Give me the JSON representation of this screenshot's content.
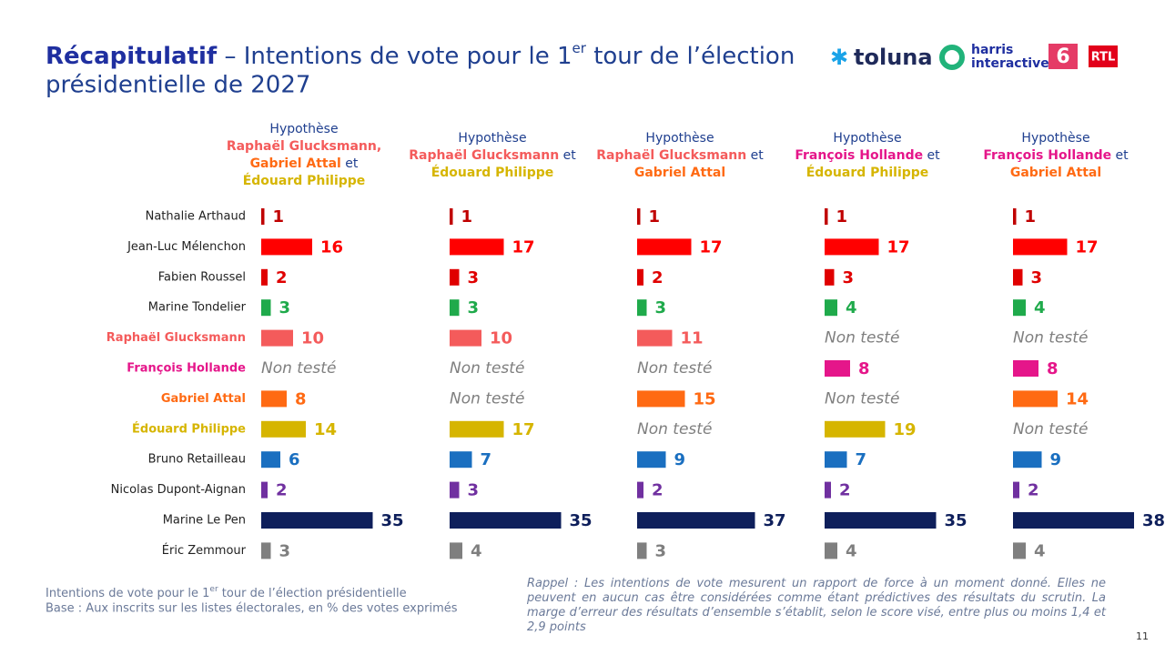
{
  "chart_data": {
    "type": "bar",
    "orientation": "horizontal",
    "title_bold": "Récapitulatif",
    "title_rest": " – Intentions de vote pour le 1",
    "title_sup": "er",
    "title_end": " tour de l’élection",
    "title_line2": "présidentielle de 2027",
    "logos": [
      "toluna",
      "harris",
      "interactive",
      "6",
      "RTL"
    ],
    "categories": [
      "Nathalie Arthaud",
      "Jean-Luc Mélenchon",
      "Fabien Roussel",
      "Marine Tondelier",
      "Raphaël Glucksmann",
      "François Hollande",
      "Gabriel Attal",
      "Édouard Philippe",
      "Bruno Retailleau",
      "Nicolas Dupont-Aignan",
      "Marine Le Pen",
      "Éric Zemmour"
    ],
    "colors": [
      "#c00000",
      "#ff0000",
      "#e00000",
      "#1faa4b",
      "#f45b5b",
      "#e5168a",
      "#ff6a13",
      "#d6b500",
      "#1a6fc0",
      "#7030a0",
      "#0e1f5b",
      "#7f7f7f"
    ],
    "category_label_colors": [
      "#222222",
      "#222222",
      "#222222",
      "#222222",
      "#f45b5b",
      "#e5168a",
      "#ff6a13",
      "#d6b500",
      "#222222",
      "#222222",
      "#222222",
      "#222222"
    ],
    "missing_label": "Non testé",
    "panels": [
      {
        "header": [
          [
            {
              "text": "Hypothèse",
              "color": "#1f3f8f"
            }
          ],
          [
            {
              "text": "Raphaël Glucksmann,",
              "color": "#f45b5b"
            }
          ],
          [
            {
              "text": "Gabriel Attal",
              "color": "#ff6a13"
            },
            {
              "text": " et",
              "color": "#1f3f8f"
            }
          ],
          [
            {
              "text": "Édouard Philippe",
              "color": "#d6b500"
            }
          ]
        ],
        "values": [
          1,
          16,
          2,
          3,
          10,
          null,
          8,
          14,
          6,
          2,
          35,
          3
        ]
      },
      {
        "header": [
          [
            {
              "text": "Hypothèse",
              "color": "#1f3f8f"
            }
          ],
          [
            {
              "text": "Raphaël Glucksmann",
              "color": "#f45b5b"
            },
            {
              "text": " et",
              "color": "#1f3f8f"
            }
          ],
          [
            {
              "text": "Édouard Philippe",
              "color": "#d6b500"
            }
          ]
        ],
        "values": [
          1,
          17,
          3,
          3,
          10,
          null,
          null,
          17,
          7,
          3,
          35,
          4
        ]
      },
      {
        "header": [
          [
            {
              "text": "Hypothèse",
              "color": "#1f3f8f"
            }
          ],
          [
            {
              "text": "Raphaël Glucksmann",
              "color": "#f45b5b"
            },
            {
              "text": " et",
              "color": "#1f3f8f"
            }
          ],
          [
            {
              "text": "Gabriel Attal",
              "color": "#ff6a13"
            }
          ]
        ],
        "values": [
          1,
          17,
          2,
          3,
          11,
          null,
          15,
          null,
          9,
          2,
          37,
          3
        ]
      },
      {
        "header": [
          [
            {
              "text": "Hypothèse",
              "color": "#1f3f8f"
            }
          ],
          [
            {
              "text": "François Hollande",
              "color": "#e5168a"
            },
            {
              "text": " et",
              "color": "#1f3f8f"
            }
          ],
          [
            {
              "text": "Édouard Philippe",
              "color": "#d6b500"
            }
          ]
        ],
        "values": [
          1,
          17,
          3,
          4,
          null,
          8,
          null,
          19,
          7,
          2,
          35,
          4
        ]
      },
      {
        "header": [
          [
            {
              "text": "Hypothèse",
              "color": "#1f3f8f"
            }
          ],
          [
            {
              "text": "François Hollande",
              "color": "#e5168a"
            },
            {
              "text": " et",
              "color": "#1f3f8f"
            }
          ],
          [
            {
              "text": "Gabriel Attal",
              "color": "#ff6a13"
            }
          ]
        ],
        "values": [
          1,
          17,
          3,
          4,
          null,
          8,
          14,
          null,
          9,
          2,
          38,
          4
        ]
      }
    ],
    "footer_left": "Intentions de vote pour le 1",
    "footer_left_sup": "er",
    "footer_left_end": " tour de l’élection présidentielle",
    "footer_left_line2": "Base : Aux inscrits sur les listes électorales, en % des votes exprimés",
    "note": "Rappel : Les intentions de vote mesurent un rapport de force à un moment donné. Elles ne peuvent en aucun cas être considérées comme étant prédictives des résultats du scrutin. La marge d’erreur des résultats d’ensemble s’établit, selon le score visé, entre plus ou moins 1,4 et 2,9 points",
    "page_number": "11"
  }
}
